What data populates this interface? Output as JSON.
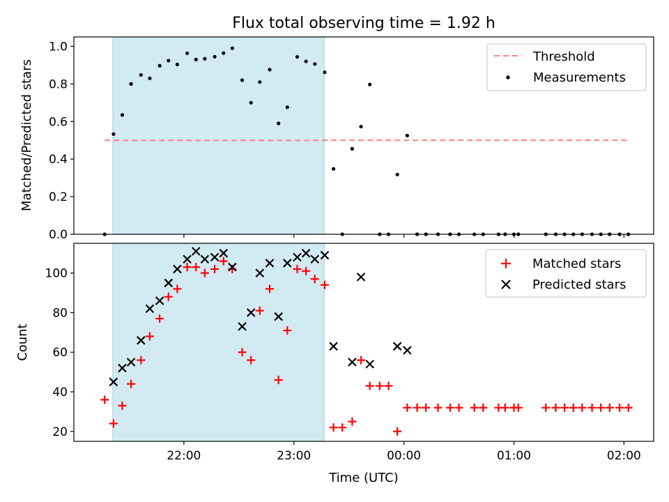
{
  "chart_data": {
    "title": "Flux total observing time = 1.92 h",
    "xlabel": "Time (UTC)",
    "x_unit": "hours since 00:00 UTC",
    "x_ticks": [
      {
        "value": -2,
        "label": "22:00"
      },
      {
        "value": -1,
        "label": "23:00"
      },
      {
        "value": 0,
        "label": "00:00"
      },
      {
        "value": 1,
        "label": "01:00"
      },
      {
        "value": 2,
        "label": "02:00"
      }
    ],
    "xlim": [
      -3.0,
      2.27
    ],
    "shaded_interval": {
      "start": -2.645,
      "end": -0.725,
      "color": "#add8e6"
    },
    "panels": [
      {
        "type": "scatter",
        "ylabel": "Matched/Predicted stars",
        "ylim": [
          0,
          1.05
        ],
        "y_ticks": [
          "0.0",
          "0.2",
          "0.4",
          "0.6",
          "0.8",
          "1.0"
        ],
        "y_tick_values": [
          0,
          0.2,
          0.4,
          0.6,
          0.8,
          1.0
        ],
        "legend_position": "upper-right",
        "threshold": {
          "name": "Threshold",
          "value": 0.5,
          "x_range": [
            -2.72,
            2.05
          ],
          "color": "#ff7f7f",
          "style": "dashed"
        },
        "series": [
          {
            "name": "Measurements",
            "marker": "dot",
            "color": "#000000",
            "points": [
              [
                -2.72,
                0.0
              ],
              [
                -2.64,
                0.533
              ],
              [
                -2.56,
                0.635
              ],
              [
                -2.48,
                0.8
              ],
              [
                -2.39,
                0.848
              ],
              [
                -2.31,
                0.83
              ],
              [
                -2.22,
                0.897
              ],
              [
                -2.14,
                0.924
              ],
              [
                -2.06,
                0.904
              ],
              [
                -1.97,
                0.963
              ],
              [
                -1.89,
                0.93
              ],
              [
                -1.81,
                0.934
              ],
              [
                -1.72,
                0.945
              ],
              [
                -1.64,
                0.964
              ],
              [
                -1.56,
                0.99
              ],
              [
                -1.47,
                0.82
              ],
              [
                -1.39,
                0.7
              ],
              [
                -1.31,
                0.81
              ],
              [
                -1.22,
                0.876
              ],
              [
                -1.14,
                0.59
              ],
              [
                -1.06,
                0.676
              ],
              [
                -0.97,
                0.944
              ],
              [
                -0.89,
                0.92
              ],
              [
                -0.81,
                0.906
              ],
              [
                -0.72,
                0.862
              ],
              [
                -0.64,
                0.348
              ],
              [
                -0.56,
                0.0
              ],
              [
                -0.47,
                0.455
              ],
              [
                -0.39,
                0.573
              ],
              [
                -0.31,
                0.797
              ],
              [
                -0.22,
                0.0
              ],
              [
                -0.14,
                0.0
              ],
              [
                -0.06,
                0.318
              ],
              [
                0.03,
                0.525
              ],
              [
                0.12,
                0.0
              ],
              [
                0.2,
                0.0
              ],
              [
                0.31,
                0.0
              ],
              [
                0.42,
                0.0
              ],
              [
                0.5,
                0.0
              ],
              [
                0.64,
                0.0
              ],
              [
                0.72,
                0.0
              ],
              [
                0.86,
                0.0
              ],
              [
                0.92,
                0.0
              ],
              [
                1.0,
                0.0
              ],
              [
                1.04,
                0.0
              ],
              [
                1.29,
                0.0
              ],
              [
                1.38,
                0.0
              ],
              [
                1.46,
                0.0
              ],
              [
                1.54,
                0.0
              ],
              [
                1.62,
                0.0
              ],
              [
                1.71,
                0.0
              ],
              [
                1.79,
                0.0
              ],
              [
                1.87,
                0.0
              ],
              [
                1.96,
                0.0
              ],
              [
                2.04,
                0.0
              ]
            ]
          }
        ]
      },
      {
        "type": "scatter",
        "ylabel": "Count",
        "ylim": [
          15,
          115
        ],
        "y_ticks": [
          "20",
          "40",
          "60",
          "80",
          "100"
        ],
        "y_tick_values": [
          20,
          40,
          60,
          80,
          100
        ],
        "legend_position": "upper-right",
        "series": [
          {
            "name": "Matched stars",
            "marker": "plus",
            "color": "#ff0000",
            "points": [
              [
                -2.72,
                36
              ],
              [
                -2.64,
                24
              ],
              [
                -2.56,
                33
              ],
              [
                -2.48,
                44
              ],
              [
                -2.39,
                56
              ],
              [
                -2.31,
                68
              ],
              [
                -2.22,
                77
              ],
              [
                -2.14,
                88
              ],
              [
                -2.06,
                92
              ],
              [
                -1.97,
                103
              ],
              [
                -1.89,
                103
              ],
              [
                -1.81,
                100
              ],
              [
                -1.72,
                102
              ],
              [
                -1.64,
                106
              ],
              [
                -1.56,
                102
              ],
              [
                -1.47,
                60
              ],
              [
                -1.39,
                56
              ],
              [
                -1.31,
                81
              ],
              [
                -1.22,
                92
              ],
              [
                -1.14,
                46
              ],
              [
                -1.06,
                71
              ],
              [
                -0.97,
                102
              ],
              [
                -0.89,
                101
              ],
              [
                -0.81,
                97
              ],
              [
                -0.72,
                94
              ],
              [
                -0.64,
                22
              ],
              [
                -0.56,
                22
              ],
              [
                -0.47,
                25
              ],
              [
                -0.39,
                56
              ],
              [
                -0.31,
                43
              ],
              [
                -0.22,
                43
              ],
              [
                -0.14,
                43
              ],
              [
                -0.06,
                20
              ],
              [
                0.03,
                32
              ],
              [
                0.12,
                32
              ],
              [
                0.2,
                32
              ],
              [
                0.31,
                32
              ],
              [
                0.42,
                32
              ],
              [
                0.5,
                32
              ],
              [
                0.64,
                32
              ],
              [
                0.72,
                32
              ],
              [
                0.86,
                32
              ],
              [
                0.92,
                32
              ],
              [
                1.0,
                32
              ],
              [
                1.04,
                32
              ],
              [
                1.29,
                32
              ],
              [
                1.38,
                32
              ],
              [
                1.46,
                32
              ],
              [
                1.54,
                32
              ],
              [
                1.62,
                32
              ],
              [
                1.71,
                32
              ],
              [
                1.79,
                32
              ],
              [
                1.87,
                32
              ],
              [
                1.96,
                32
              ],
              [
                2.04,
                32
              ]
            ]
          },
          {
            "name": "Predicted stars",
            "marker": "x",
            "color": "#000000",
            "points": [
              [
                -2.64,
                45
              ],
              [
                -2.56,
                52
              ],
              [
                -2.48,
                55
              ],
              [
                -2.39,
                66
              ],
              [
                -2.31,
                82
              ],
              [
                -2.22,
                86
              ],
              [
                -2.14,
                95
              ],
              [
                -2.06,
                102
              ],
              [
                -1.97,
                107
              ],
              [
                -1.89,
                111
              ],
              [
                -1.81,
                107
              ],
              [
                -1.72,
                108
              ],
              [
                -1.64,
                110
              ],
              [
                -1.56,
                103
              ],
              [
                -1.47,
                73
              ],
              [
                -1.39,
                80
              ],
              [
                -1.31,
                100
              ],
              [
                -1.22,
                105
              ],
              [
                -1.14,
                78
              ],
              [
                -1.06,
                105
              ],
              [
                -0.97,
                108
              ],
              [
                -0.89,
                110
              ],
              [
                -0.81,
                107
              ],
              [
                -0.72,
                109
              ],
              [
                -0.64,
                63
              ],
              [
                -0.47,
                55
              ],
              [
                -0.39,
                98
              ],
              [
                -0.31,
                54
              ],
              [
                -0.06,
                63
              ],
              [
                0.03,
                61
              ]
            ]
          }
        ]
      }
    ]
  }
}
